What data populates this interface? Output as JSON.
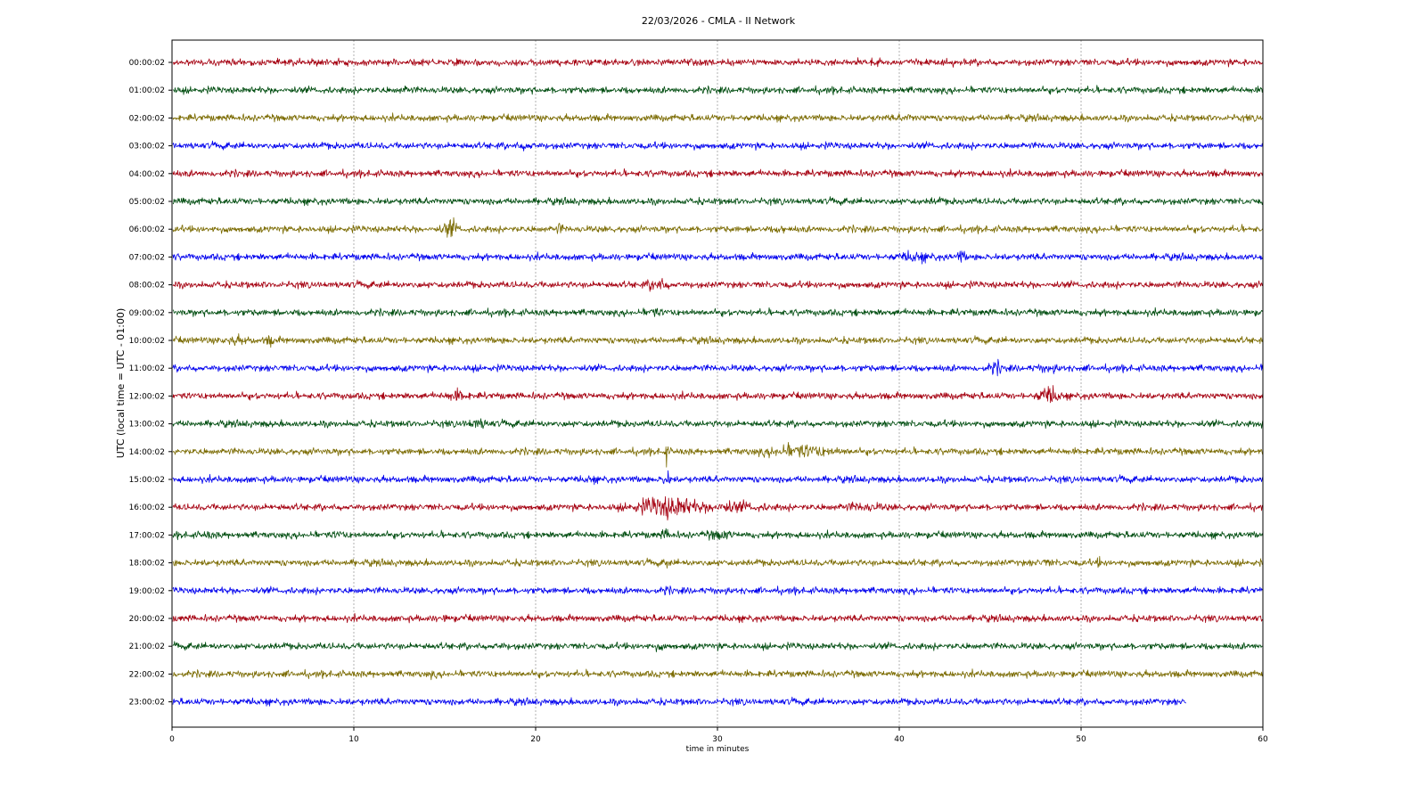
{
  "chart_data": {
    "type": "line",
    "title": "22/03/2026 - CMLA - II Network",
    "xlabel": "time in minutes",
    "ylabel": "UTC (local time = UTC - 01:00)",
    "xlim": [
      0,
      60
    ],
    "xticks": [
      0,
      10,
      20,
      30,
      40,
      50,
      60
    ],
    "grid": "x-dashed",
    "colors": [
      "#a50010",
      "#004d10",
      "#7a6a00",
      "#0000ee"
    ],
    "series": [
      {
        "label": "00:00:02",
        "end_minute": 60,
        "events": []
      },
      {
        "label": "01:00:02",
        "end_minute": 60,
        "events": [
          {
            "minute": 12.8,
            "amp": 1.5,
            "dur": 0.4
          }
        ]
      },
      {
        "label": "02:00:02",
        "end_minute": 60,
        "events": [
          {
            "minute": 40.5,
            "amp": 1.4,
            "dur": 0.6
          }
        ]
      },
      {
        "label": "03:00:02",
        "end_minute": 60,
        "events": [
          {
            "minute": 19.5,
            "amp": 1.6,
            "dur": 0.6
          }
        ]
      },
      {
        "label": "04:00:02",
        "end_minute": 60,
        "events": []
      },
      {
        "label": "05:00:02",
        "end_minute": 60,
        "events": [
          {
            "minute": 42,
            "amp": 1.4,
            "dur": 0.4
          }
        ]
      },
      {
        "label": "06:00:02",
        "end_minute": 60,
        "events": [
          {
            "minute": 15.3,
            "amp": 3.2,
            "dur": 0.5
          },
          {
            "minute": 21.3,
            "amp": 2.2,
            "dur": 0.2
          },
          {
            "minute": 33.5,
            "amp": 1.8,
            "dur": 0.3
          }
        ]
      },
      {
        "label": "07:00:02",
        "end_minute": 60,
        "events": [
          {
            "minute": 40.8,
            "amp": 1.8,
            "dur": 1.2
          },
          {
            "minute": 43.4,
            "amp": 2.4,
            "dur": 0.3
          }
        ]
      },
      {
        "label": "08:00:02",
        "end_minute": 60,
        "events": [
          {
            "minute": 26.7,
            "amp": 2.4,
            "dur": 0.7
          }
        ]
      },
      {
        "label": "09:00:02",
        "end_minute": 60,
        "events": [
          {
            "minute": 26.5,
            "amp": 1.7,
            "dur": 0.5
          }
        ]
      },
      {
        "label": "10:00:02",
        "end_minute": 60,
        "events": [
          {
            "minute": 3.5,
            "amp": 1.6,
            "dur": 1
          },
          {
            "minute": 5.4,
            "amp": 2.0,
            "dur": 0.3
          }
        ]
      },
      {
        "label": "11:00:02",
        "end_minute": 60,
        "events": [
          {
            "minute": 45.3,
            "amp": 2.2,
            "dur": 0.5
          },
          {
            "minute": 48.2,
            "amp": 1.5,
            "dur": 0.8
          }
        ]
      },
      {
        "label": "12:00:02",
        "end_minute": 60,
        "events": [
          {
            "minute": 15.7,
            "amp": 2.0,
            "dur": 0.8
          },
          {
            "minute": 48.2,
            "amp": 3.2,
            "dur": 0.7
          }
        ]
      },
      {
        "label": "13:00:02",
        "end_minute": 60,
        "events": [
          {
            "minute": 16.8,
            "amp": 1.9,
            "dur": 0.8
          }
        ]
      },
      {
        "label": "14:00:02",
        "end_minute": 60,
        "events": [
          {
            "minute": 27.2,
            "amp": 4.5,
            "dur": 0.1
          },
          {
            "minute": 34.5,
            "amp": 2.3,
            "dur": 2.5
          }
        ]
      },
      {
        "label": "15:00:02",
        "end_minute": 60,
        "events": [
          {
            "minute": 27.2,
            "amp": 2.8,
            "dur": 0.3
          },
          {
            "minute": 23,
            "amp": 1.4,
            "dur": 0.4
          }
        ]
      },
      {
        "label": "16:00:02",
        "end_minute": 60,
        "events": [
          {
            "minute": 27.3,
            "amp": 3.8,
            "dur": 2.2
          },
          {
            "minute": 30.5,
            "amp": 2.0,
            "dur": 2.5
          },
          {
            "minute": 38,
            "amp": 1.6,
            "dur": 1.5
          }
        ]
      },
      {
        "label": "17:00:02",
        "end_minute": 60,
        "events": [
          {
            "minute": 27.2,
            "amp": 2.0,
            "dur": 0.4
          },
          {
            "minute": 30.1,
            "amp": 1.9,
            "dur": 0.8
          },
          {
            "minute": 2,
            "amp": 1.5,
            "dur": 0.4
          },
          {
            "minute": 9.2,
            "amp": 1.5,
            "dur": 0.4
          }
        ]
      },
      {
        "label": "18:00:02",
        "end_minute": 60,
        "events": [
          {
            "minute": 27.2,
            "amp": 3.0,
            "dur": 0.1
          },
          {
            "minute": 48,
            "amp": 1.4,
            "dur": 0.6
          },
          {
            "minute": 51,
            "amp": 1.8,
            "dur": 0.2
          }
        ]
      },
      {
        "label": "19:00:02",
        "end_minute": 60,
        "events": [
          {
            "minute": 27.2,
            "amp": 1.6,
            "dur": 0.2
          }
        ]
      },
      {
        "label": "20:00:02",
        "end_minute": 60,
        "events": [
          {
            "minute": 15,
            "amp": 1.3,
            "dur": 0.5
          }
        ]
      },
      {
        "label": "21:00:02",
        "end_minute": 60,
        "events": [
          {
            "minute": 18,
            "amp": 1.4,
            "dur": 0.5
          },
          {
            "minute": 26.8,
            "amp": 1.4,
            "dur": 0.4
          }
        ]
      },
      {
        "label": "22:00:02",
        "end_minute": 60,
        "events": [
          {
            "minute": 14.3,
            "amp": 1.4,
            "dur": 0.3
          }
        ]
      },
      {
        "label": "23:00:02",
        "end_minute": 55.8,
        "events": []
      }
    ]
  }
}
